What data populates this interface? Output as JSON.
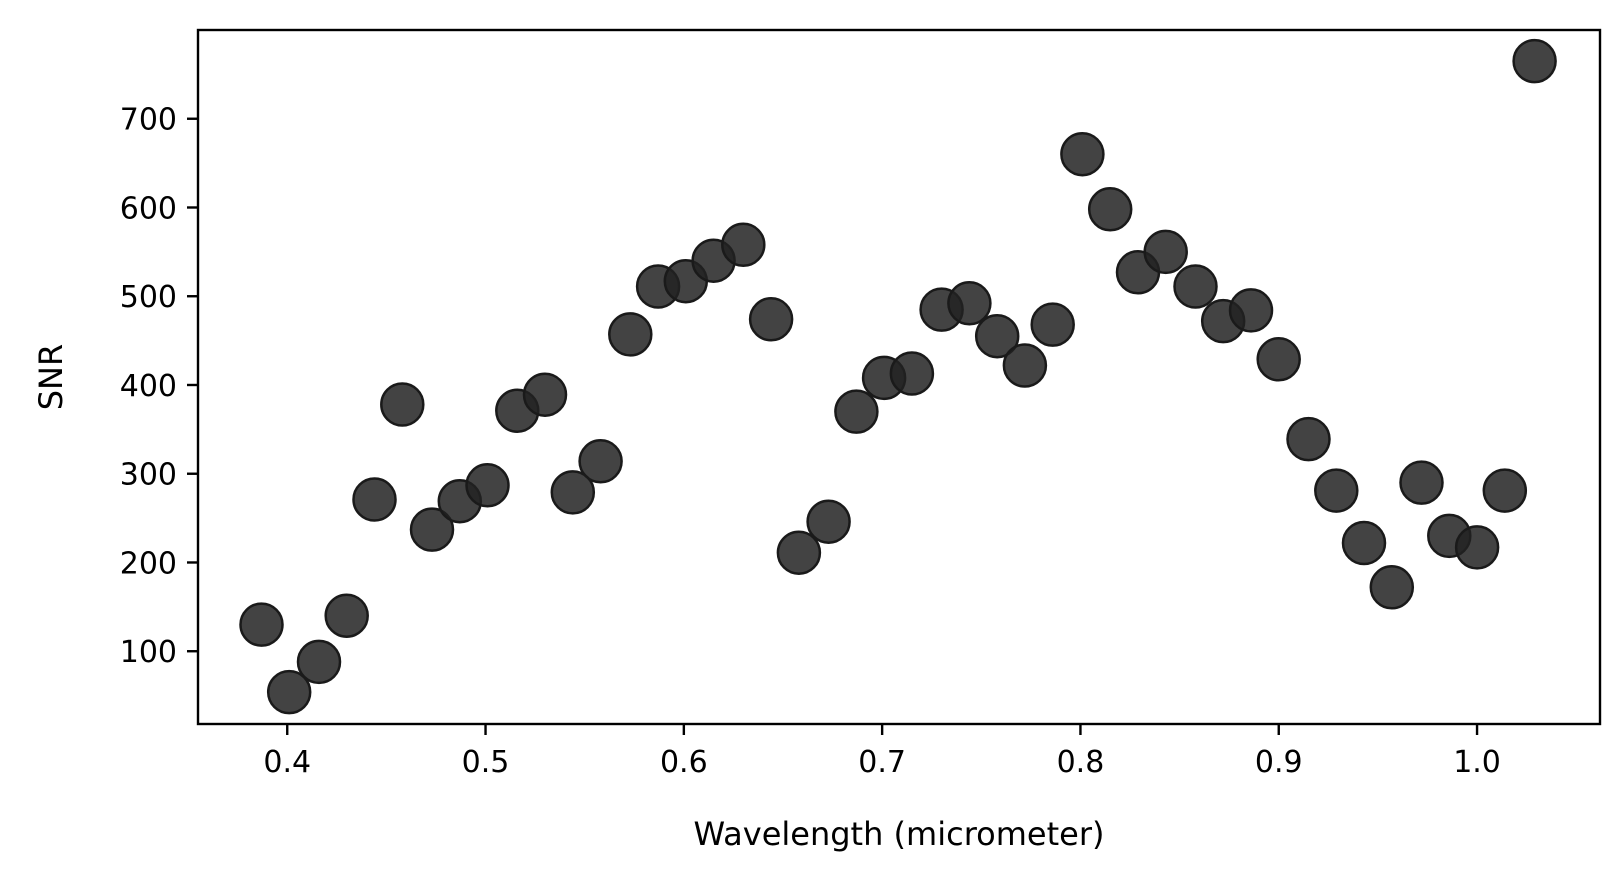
{
  "chart_data": {
    "type": "scatter",
    "title": "",
    "xlabel": "Wavelength (micrometer)",
    "ylabel": "SNR",
    "xlim": [
      0.355,
      1.062
    ],
    "ylim": [
      18,
      800
    ],
    "xticks": [
      0.4,
      0.5,
      0.6,
      0.7,
      0.8,
      0.9,
      1.0
    ],
    "xtick_labels": [
      "0.4",
      "0.5",
      "0.6",
      "0.7",
      "0.8",
      "0.9",
      "1.0"
    ],
    "yticks": [
      100,
      200,
      300,
      400,
      500,
      600,
      700
    ],
    "ytick_labels": [
      "100",
      "200",
      "300",
      "400",
      "500",
      "600",
      "700"
    ],
    "grid": false,
    "legend": false,
    "marker_color": "#222222",
    "series": [
      {
        "x": [
          0.387,
          0.401,
          0.416,
          0.43,
          0.444,
          0.458,
          0.473,
          0.487,
          0.501,
          0.516,
          0.53,
          0.544,
          0.558,
          0.573,
          0.587,
          0.601,
          0.615,
          0.63,
          0.644,
          0.658,
          0.673,
          0.687,
          0.701,
          0.715,
          0.73,
          0.744,
          0.758,
          0.772,
          0.786,
          0.801,
          0.815,
          0.829,
          0.843,
          0.858,
          0.872,
          0.886,
          0.9,
          0.915,
          0.929,
          0.943,
          0.957,
          0.972,
          0.986,
          1.0,
          1.014,
          1.029
        ],
        "y": [
          130,
          54,
          88,
          140,
          271,
          378,
          237,
          269,
          287,
          371,
          389,
          279,
          314,
          457,
          511,
          517,
          540,
          558,
          474,
          211,
          246,
          370,
          408,
          413,
          485,
          492,
          455,
          422,
          468,
          660,
          598,
          527,
          550,
          511,
          472,
          484,
          429,
          339,
          281,
          222,
          172,
          290,
          230,
          217,
          281,
          765
        ]
      }
    ]
  }
}
